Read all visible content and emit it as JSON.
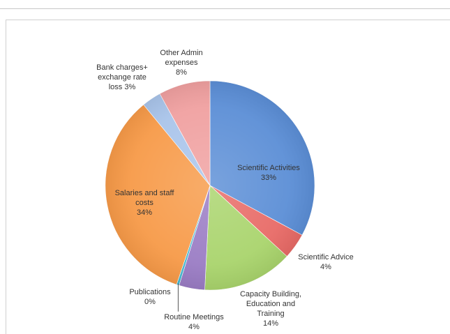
{
  "chart_data": {
    "type": "pie",
    "title": "",
    "slices": [
      {
        "label_lines": [
          "Scientific Activities"
        ],
        "value_label": "33%",
        "value": 33,
        "color": "#5b8ed6"
      },
      {
        "label_lines": [
          "Scientific Advice"
        ],
        "value_label": "4%",
        "value": 4,
        "color": "#e86a66"
      },
      {
        "label_lines": [
          "Capacity Building,",
          "Education and",
          "Training"
        ],
        "value_label": "14%",
        "value": 14,
        "color": "#a9d46c"
      },
      {
        "label_lines": [
          "Routine Meetings"
        ],
        "value_label": "4%",
        "value": 4,
        "color": "#9a7cc4"
      },
      {
        "label_lines": [
          "Publications"
        ],
        "value_label": "0%",
        "value": 0.4,
        "color": "#45b8d0"
      },
      {
        "label_lines": [
          "Salaries and staff",
          "costs"
        ],
        "value_label": "34%",
        "value": 34,
        "color": "#f79a48"
      },
      {
        "label_lines": [
          "Bank charges+",
          "exchange rate",
          "loss 3%"
        ],
        "value_label": "",
        "value": 3,
        "color": "#a9c4ea"
      },
      {
        "label_lines": [
          "Other Admin",
          "expenses"
        ],
        "value_label": "8%",
        "value": 8,
        "color": "#f0a0a0"
      }
    ]
  }
}
